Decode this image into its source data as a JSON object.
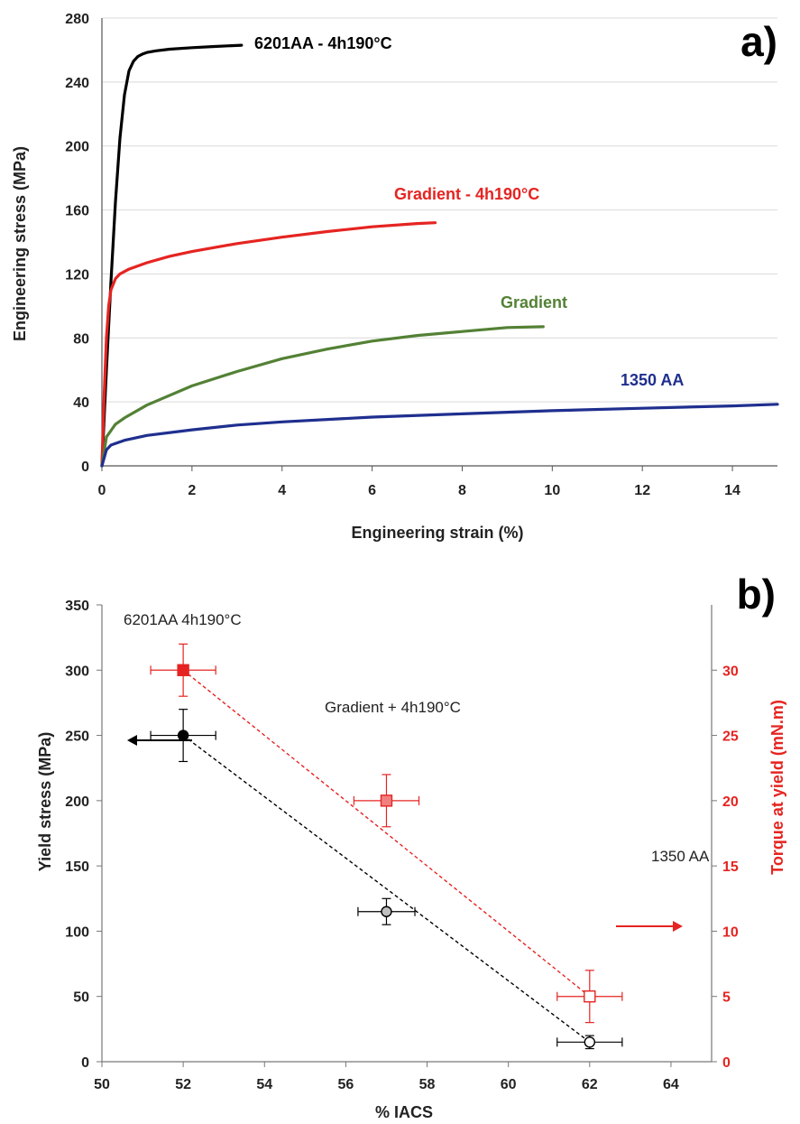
{
  "chart_data": [
    {
      "panel_label": "a)",
      "type": "line",
      "xlabel": "Engineering strain (%)",
      "ylabel": "Engineering stress (MPa)",
      "xlim": [
        0,
        15
      ],
      "ylim": [
        0,
        280
      ],
      "xticks": [
        0,
        2,
        4,
        6,
        8,
        10,
        12,
        14
      ],
      "yticks": [
        0,
        40,
        80,
        120,
        160,
        200,
        240,
        280
      ],
      "grid": "horizontal",
      "series": [
        {
          "name": "6201AA - 4h190°C",
          "color": "#000000",
          "x": [
            0,
            0.1,
            0.2,
            0.3,
            0.4,
            0.5,
            0.6,
            0.7,
            0.8,
            0.9,
            1.0,
            1.2,
            1.5,
            2.0,
            2.5,
            3.1
          ],
          "y": [
            0,
            60,
            115,
            165,
            205,
            232,
            247,
            253,
            256,
            257.5,
            258.5,
            259.5,
            260.5,
            261.5,
            262.2,
            263
          ]
        },
        {
          "name": "Gradient - 4h190°C",
          "color": "#e52421",
          "x": [
            0,
            0.05,
            0.1,
            0.15,
            0.2,
            0.3,
            0.4,
            0.6,
            1.0,
            1.5,
            2.0,
            3.0,
            4.0,
            5.0,
            6.0,
            7.0,
            7.4
          ],
          "y": [
            0,
            45,
            80,
            100,
            110,
            117,
            120,
            123,
            127,
            131,
            134,
            139,
            143,
            146.5,
            149.5,
            151.5,
            152
          ]
        },
        {
          "name": "Gradient",
          "color": "#538135",
          "x": [
            0,
            0.1,
            0.3,
            0.5,
            1.0,
            2.0,
            3.0,
            4.0,
            5.0,
            6.0,
            7.0,
            8.0,
            9.0,
            9.8
          ],
          "y": [
            0,
            18,
            26,
            30,
            38,
            50,
            59,
            67,
            73,
            78,
            81.5,
            84,
            86.5,
            87
          ]
        },
        {
          "name": "1350 AA",
          "color": "#1f2f8f",
          "x": [
            0,
            0.1,
            0.2,
            0.5,
            1.0,
            2.0,
            3.0,
            4.0,
            6.0,
            8.0,
            10.0,
            12.0,
            14.0,
            15.0
          ],
          "y": [
            0,
            10,
            13,
            16,
            19,
            22.5,
            25.5,
            27.5,
            30.5,
            32.5,
            34.5,
            36,
            37.5,
            38.5
          ]
        }
      ]
    },
    {
      "panel_label": "b)",
      "type": "scatter",
      "xlabel": "% IACS",
      "ylabel": "Yield stress (MPa)",
      "ylabel_right": "Torque at yield (mN.m)",
      "xlim": [
        50,
        65
      ],
      "ylim": [
        0,
        350
      ],
      "ylim_right": [
        0,
        35
      ],
      "xticks": [
        50,
        52,
        54,
        56,
        58,
        60,
        62,
        64
      ],
      "yticks": [
        0,
        50,
        100,
        150,
        200,
        250,
        300,
        350
      ],
      "yticks_right": [
        0,
        5,
        10,
        15,
        20,
        25,
        30
      ],
      "grid": "none",
      "series": [
        {
          "axis": "left",
          "marker": "circle",
          "color": "#000000",
          "points": [
            {
              "x": 52,
              "y": 250,
              "xerr": 0.8,
              "yerr": 20,
              "fill": "#000000"
            },
            {
              "x": 57,
              "y": 115,
              "xerr": 0.7,
              "yerr": 10,
              "fill": "#c0c0c0"
            },
            {
              "x": 62,
              "y": 15,
              "xerr": 0.8,
              "yerr": 5,
              "fill": "#ffffff"
            }
          ]
        },
        {
          "axis": "right",
          "marker": "square",
          "color": "#e52421",
          "points": [
            {
              "x": 52,
              "y": 30,
              "xerr": 0.8,
              "yerr": 2,
              "fill": "#e52421"
            },
            {
              "x": 57,
              "y": 20,
              "xerr": 0.8,
              "yerr": 2,
              "fill": "#f08080"
            },
            {
              "x": 62,
              "y": 5,
              "xerr": 0.8,
              "yerr": 2,
              "fill": "#ffffff"
            }
          ]
        }
      ],
      "annotations": [
        "6201AA 4h190°C",
        "Gradient + 4h190°C",
        "1350 AA"
      ]
    }
  ]
}
